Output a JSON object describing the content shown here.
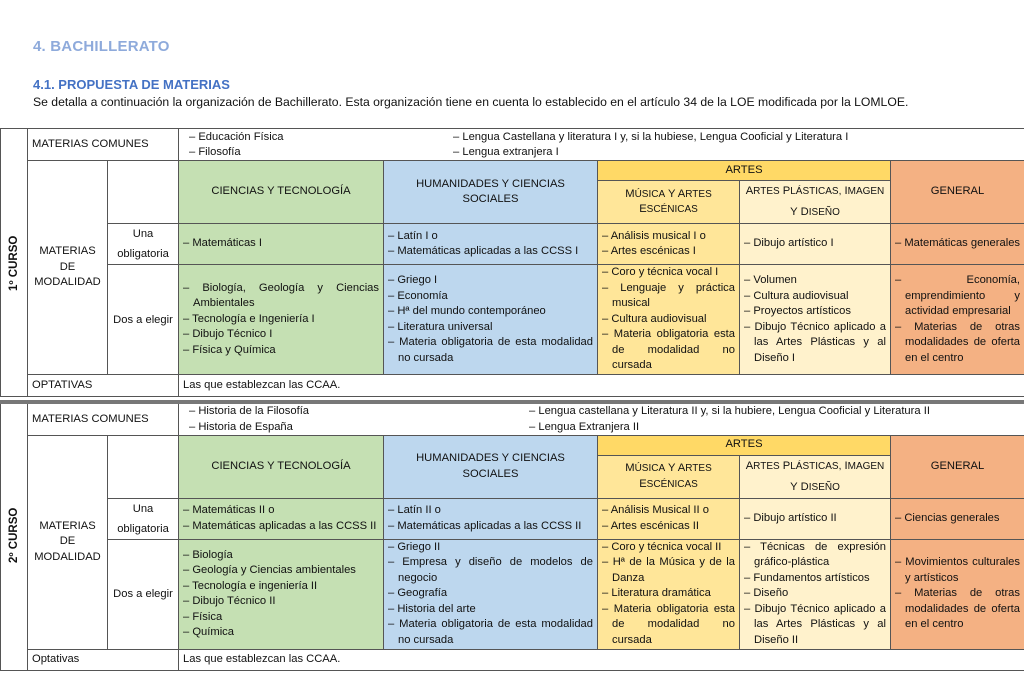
{
  "heading": "4.  BACHILLERATO",
  "subheading": "4.1. PROPUESTA DE MATERIAS",
  "intro": "Se detalla a continuación la organización de Bachillerato. Esta organización tiene en cuenta lo establecido en el artículo 34 de la LOE modificada por la LOMLOE.",
  "colors": {
    "heading": "#8eaadb",
    "subheading": "#4472c4",
    "ciencias": "#c5e0b3",
    "humanidades": "#bdd7ee",
    "artes": "#ffd966",
    "musica": "#ffe699",
    "plasticas": "#fff2cc",
    "general": "#f4b183"
  },
  "courses": [
    {
      "label": "1º CURSO",
      "comunes_label": "MATERIAS COMUNES",
      "comunes_left": [
        "Educación Física",
        "Filosofía"
      ],
      "comunes_right": [
        "Lengua Castellana y literatura I y, si la hubiese, Lengua Cooficial y Literatura I",
        "Lengua extranjera I"
      ],
      "modalidad_label": "MATERIAS DE MODALIDAD",
      "headers": {
        "ciencias": "CIENCIAS Y TECNOLOGÍA",
        "humanidades": "HUMANIDADES Y CIENCIAS SOCIALES",
        "artes": "ARTES",
        "musica": "Música y artes escénicas",
        "plasticas": "Artes plásticas, imagen y diseño",
        "general": "GENERAL"
      },
      "una_label": "Una obligatoria",
      "dos_label": "Dos a elegir",
      "una": {
        "ciencias": [
          "Matemáticas I"
        ],
        "humanidades": [
          "Latín I o",
          "Matemáticas aplicadas a las CCSS I"
        ],
        "musica": [
          "Análisis musical I o",
          "Artes escénicas I"
        ],
        "plasticas": [
          "Dibujo artístico I"
        ],
        "general": [
          "Matemáticas generales"
        ]
      },
      "dos": {
        "ciencias": [
          "Biología, Geología y Ciencias Ambientales",
          "Tecnología e Ingeniería I",
          "Dibujo Técnico I",
          "Física y Química"
        ],
        "humanidades": [
          "Griego I",
          "Economía",
          "Hª del mundo contemporáneo",
          "Literatura universal",
          "Materia obligatoria de esta modalidad no cursada"
        ],
        "musica": [
          "Coro y técnica vocal I",
          "Lenguaje y práctica musical",
          "Cultura audiovisual",
          "Materia obligatoria esta de modalidad no cursada"
        ],
        "plasticas": [
          "Volumen",
          "Cultura audiovisual",
          "Proyectos artísticos",
          "Dibujo Técnico aplicado a las Artes Plásticas y al Diseño I"
        ],
        "general": [
          "Economía, emprendimiento y actividad empresarial",
          "Materias de otras modalidades de oferta en el centro"
        ]
      },
      "optativas_label": "OPTATIVAS",
      "optativas": "Las que establezcan las CCAA."
    },
    {
      "label": "2º CURSO",
      "comunes_label": "MATERIAS COMUNES",
      "comunes_left": [
        "Historia de la Filosofía",
        "Historia de España"
      ],
      "comunes_right": [
        "Lengua castellana y Literatura II y, si la hubiere, Lengua Cooficial y Literatura II",
        "Lengua Extranjera II"
      ],
      "modalidad_label": "MATERIAS DE MODALIDAD",
      "headers": {
        "ciencias": "CIENCIAS Y TECNOLOGÍA",
        "humanidades": "HUMANIDADES Y CIENCIAS SOCIALES",
        "artes": "ARTES",
        "musica": "Música y artes escénicas",
        "plasticas": "Artes plásticas, imagen y diseño",
        "general": "GENERAL"
      },
      "una_label": "Una obligatoria",
      "dos_label": "Dos a elegir",
      "una": {
        "ciencias": [
          "Matemáticas II o",
          "Matemáticas aplicadas a las CCSS II"
        ],
        "humanidades": [
          "Latín II o",
          "Matemáticas aplicadas a las CCSS II"
        ],
        "musica": [
          "Análisis Musical II o",
          "Artes escénicas II"
        ],
        "plasticas": [
          "Dibujo artístico II"
        ],
        "general": [
          "Ciencias generales"
        ]
      },
      "dos": {
        "ciencias": [
          "Biología",
          "Geología y Ciencias ambientales",
          "Tecnología e ingeniería II",
          "Dibujo Técnico II",
          "Física",
          "Química"
        ],
        "humanidades": [
          "Griego II",
          "Empresa y diseño de modelos de negocio",
          "Geografía",
          "Historia del arte",
          "Materia obligatoria de esta modalidad no cursada"
        ],
        "musica": [
          "Coro y técnica vocal II",
          "Hª de la Música y de la Danza",
          "Literatura dramática",
          "Materia obligatoria esta de modalidad no cursada"
        ],
        "plasticas": [
          "Técnicas de expresión gráfico-plástica",
          "Fundamentos artísticos",
          "Diseño",
          "Dibujo Técnico aplicado a las Artes Plásticas y al Diseño II"
        ],
        "general": [
          "Movimientos culturales y artísticos",
          "Materias de otras modalidades de oferta en el centro"
        ]
      },
      "optativas_label": "Optativas",
      "optativas": "Las que establezcan las CCAA."
    }
  ]
}
